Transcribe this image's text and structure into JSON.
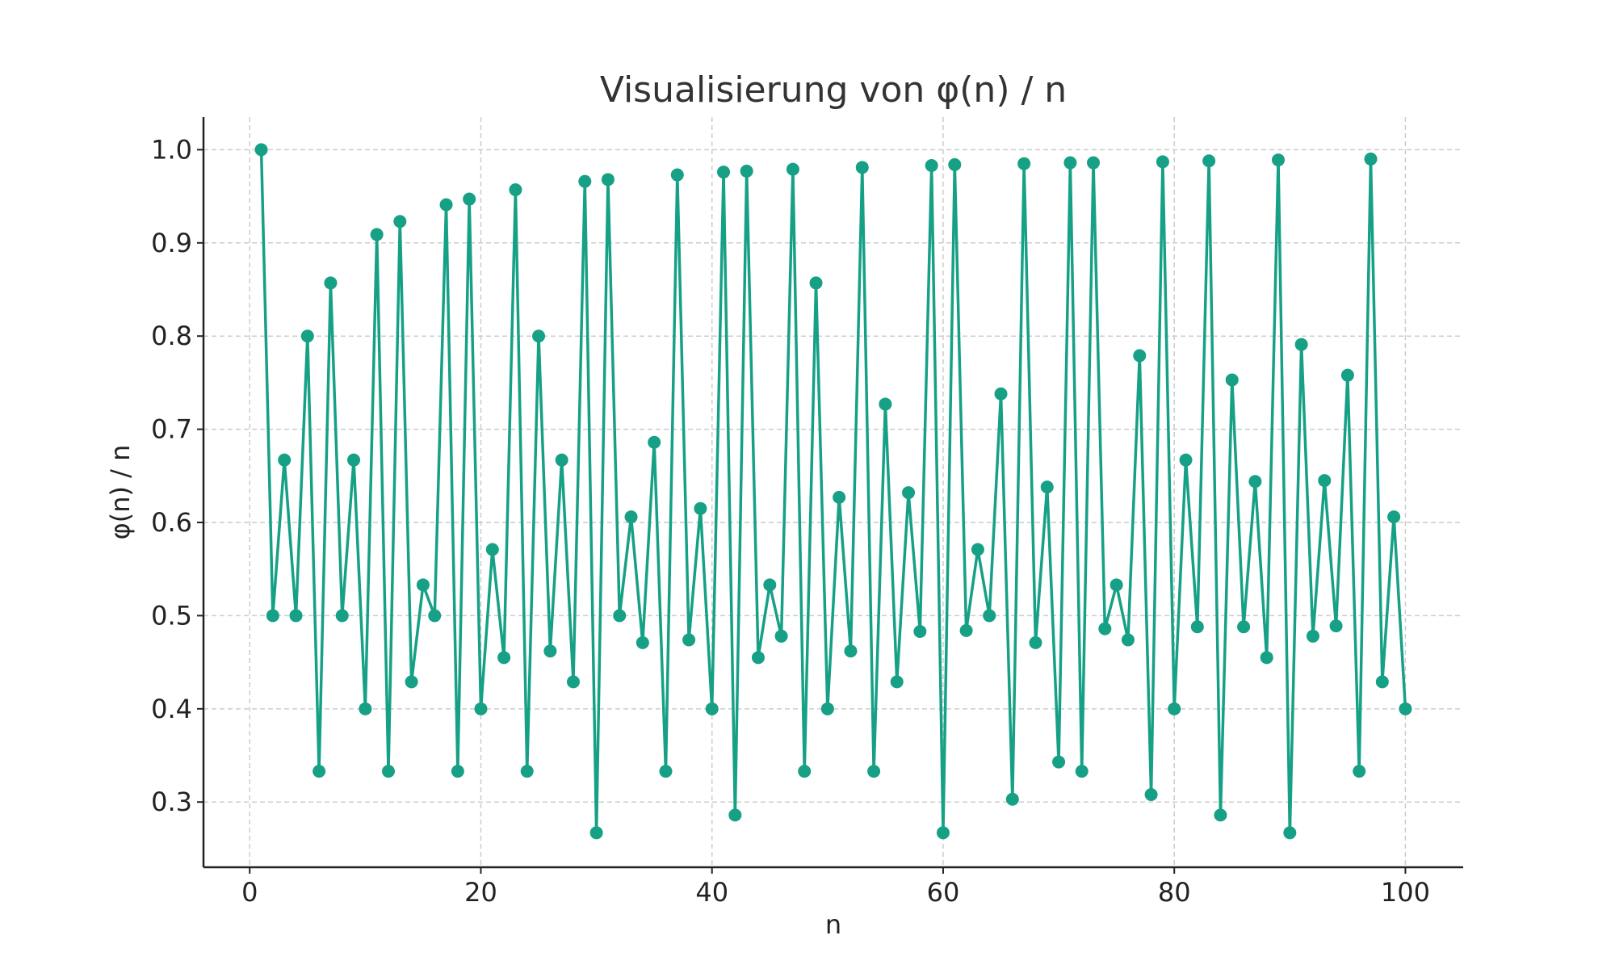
{
  "chart_data": {
    "type": "line",
    "title": "Visualisierung von φ(n) / n",
    "xlabel": "n",
    "ylabel": "φ(n) / n",
    "xlim": [
      -4,
      105
    ],
    "ylim": [
      0.23,
      1.035
    ],
    "xticks": [
      0,
      20,
      40,
      60,
      80,
      100
    ],
    "yticks": [
      0.3,
      0.4,
      0.5,
      0.6,
      0.7,
      0.8,
      0.9,
      1.0
    ],
    "grid": true,
    "legend": "none",
    "series": [
      {
        "color": "#16a085",
        "marker": "circle",
        "x": [
          1,
          2,
          3,
          4,
          5,
          6,
          7,
          8,
          9,
          10,
          11,
          12,
          13,
          14,
          15,
          16,
          17,
          18,
          19,
          20,
          21,
          22,
          23,
          24,
          25,
          26,
          27,
          28,
          29,
          30,
          31,
          32,
          33,
          34,
          35,
          36,
          37,
          38,
          39,
          40,
          41,
          42,
          43,
          44,
          45,
          46,
          47,
          48,
          49,
          50,
          51,
          52,
          53,
          54,
          55,
          56,
          57,
          58,
          59,
          60,
          61,
          62,
          63,
          64,
          65,
          66,
          67,
          68,
          69,
          70,
          71,
          72,
          73,
          74,
          75,
          76,
          77,
          78,
          79,
          80,
          81,
          82,
          83,
          84,
          85,
          86,
          87,
          88,
          89,
          90,
          91,
          92,
          93,
          94,
          95,
          96,
          97,
          98,
          99,
          100
        ],
        "y": [
          1.0,
          0.5,
          0.667,
          0.5,
          0.8,
          0.333,
          0.857,
          0.5,
          0.667,
          0.4,
          0.909,
          0.333,
          0.923,
          0.429,
          0.533,
          0.5,
          0.941,
          0.333,
          0.947,
          0.4,
          0.571,
          0.455,
          0.957,
          0.333,
          0.8,
          0.462,
          0.667,
          0.429,
          0.966,
          0.267,
          0.968,
          0.5,
          0.606,
          0.471,
          0.686,
          0.333,
          0.973,
          0.474,
          0.615,
          0.4,
          0.976,
          0.286,
          0.977,
          0.455,
          0.533,
          0.478,
          0.979,
          0.333,
          0.857,
          0.4,
          0.627,
          0.462,
          0.981,
          0.333,
          0.727,
          0.429,
          0.632,
          0.483,
          0.983,
          0.267,
          0.984,
          0.484,
          0.571,
          0.5,
          0.738,
          0.303,
          0.985,
          0.471,
          0.638,
          0.343,
          0.986,
          0.333,
          0.986,
          0.486,
          0.533,
          0.474,
          0.779,
          0.308,
          0.987,
          0.4,
          0.667,
          0.488,
          0.988,
          0.286,
          0.753,
          0.488,
          0.644,
          0.455,
          0.989,
          0.267,
          0.791,
          0.478,
          0.645,
          0.489,
          0.758,
          0.333,
          0.99,
          0.429,
          0.606,
          0.4
        ]
      }
    ]
  }
}
